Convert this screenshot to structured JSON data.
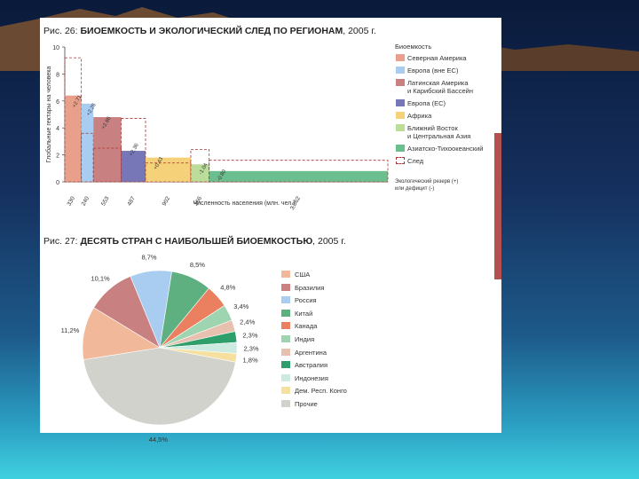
{
  "chart_data": [
    {
      "type": "bar",
      "title_prefix": "Рис. 26:",
      "title": "БИОЕМКОСТЬ И ЭКОЛОГИЧЕСКИЙ СЛЕД ПО РЕГИОНАМ",
      "title_suffix": ", 2005 г.",
      "ylabel": "Глобальные гектары на человека",
      "xlabel": "Численность населения (млн. чел.)",
      "ylim": [
        0,
        10
      ],
      "yticks": [
        "0",
        "2",
        "4",
        "6",
        "8",
        "10"
      ],
      "legend_title": "Биоемкость",
      "categories": [
        "Северная Америка",
        "Европа (вне ЕС)",
        "Латинская Америка и Карибский Бассейн",
        "Европа (ЕС)",
        "Африка",
        "Ближний Восток и Центральная Азия",
        "Азиатско-Тихоокеанский"
      ],
      "legend_labels": [
        "Северная Америка",
        "Европа (вне ЕС)",
        "Латинская Америка\nи Карибский Бассейн",
        "Европа (ЕС)",
        "Африка",
        "Ближний Восток\nи Центральная Азия",
        "Азиатско-Тихоокеанский"
      ],
      "population": [
        330,
        240,
        553,
        487,
        902,
        366,
        3562
      ],
      "population_labels": [
        "330",
        "240",
        "553",
        "487",
        "902",
        "366",
        "3,562"
      ],
      "biocapacity": [
        6.4,
        5.8,
        4.8,
        2.3,
        1.8,
        1.3,
        0.8
      ],
      "footprint": [
        9.2,
        3.6,
        2.5,
        4.7,
        1.4,
        2.4,
        1.6
      ],
      "balance_labels": [
        "+2.71",
        "+2.26",
        "+2.86",
        "+2.36",
        "+0.43",
        "-1.04",
        "-0.80"
      ],
      "colors": [
        "#e8a08a",
        "#a9cdf0",
        "#c98080",
        "#7777b8",
        "#f5d27a",
        "#bcdc9a",
        "#6bbf8e"
      ],
      "footprint_label": "След",
      "note_line1": "Экологический резерв (+)",
      "note_line2": "или дефицит (-)"
    },
    {
      "type": "pie",
      "title_prefix": "Рис. 27:",
      "title": "ДЕСЯТЬ СТРАН С НАИБОЛЬШЕЙ БИОЕМКОСТЬЮ",
      "title_suffix": ", 2005 г.",
      "categories": [
        "США",
        "Бразилия",
        "Россия",
        "Китай",
        "Канада",
        "Индия",
        "Аргентина",
        "Австралия",
        "Индонезия",
        "Дем. Респ. Конго",
        "Прочие"
      ],
      "values": [
        11.2,
        10.1,
        8.7,
        8.5,
        4.8,
        3.4,
        2.4,
        2.3,
        2.3,
        1.8,
        44.5
      ],
      "value_labels": [
        "11,2%",
        "10,1%",
        "8,7%",
        "8,5%",
        "4,8%",
        "3,4%",
        "2,4%",
        "2,3%",
        "2,3%",
        "1,8%",
        "44,5%"
      ],
      "colors": [
        "#f2b89a",
        "#c98080",
        "#a9cdf0",
        "#5fb080",
        "#ea8060",
        "#9fd4b0",
        "#e8c0b0",
        "#2e9e6a",
        "#cdeae0",
        "#f5e0a0",
        "#d2d2cc"
      ]
    }
  ]
}
